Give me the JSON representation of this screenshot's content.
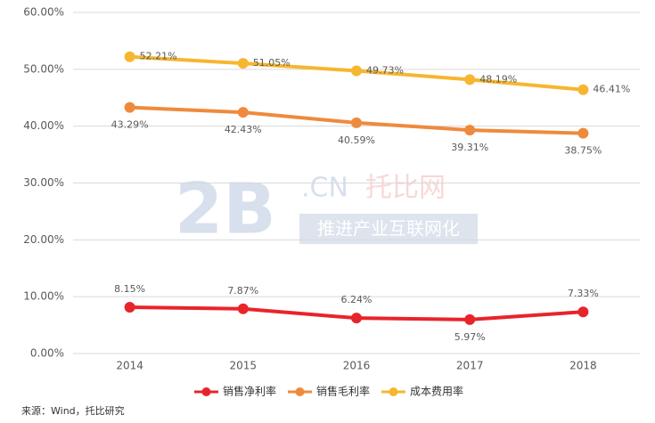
{
  "chart_data": {
    "type": "line",
    "categories": [
      "2014",
      "2015",
      "2016",
      "2017",
      "2018"
    ],
    "series": [
      {
        "name": "销售净利率",
        "color": "#e8242b",
        "values": [
          8.15,
          7.87,
          6.24,
          5.97,
          7.33
        ],
        "value_labels": [
          "8.15%",
          "7.87%",
          "6.24%",
          "5.97%",
          "7.33%"
        ]
      },
      {
        "name": "销售毛利率",
        "color": "#ef8a3c",
        "values": [
          43.29,
          42.43,
          40.59,
          39.31,
          38.75
        ],
        "value_labels": [
          "43.29%",
          "42.43%",
          "40.59%",
          "39.31%",
          "38.75%"
        ]
      },
      {
        "name": "成本费用率",
        "color": "#f6b630",
        "values": [
          52.21,
          51.05,
          49.73,
          48.19,
          46.41
        ],
        "value_labels": [
          "52.21%",
          "51.05%",
          "49.73%",
          "48.19%",
          "46.41%"
        ]
      }
    ],
    "ylim": [
      0,
      60
    ],
    "yticks": [
      {
        "value": 0,
        "label": "0.00%"
      },
      {
        "value": 10,
        "label": "10.00%"
      },
      {
        "value": 20,
        "label": "20.00%"
      },
      {
        "value": 30,
        "label": "30.00%"
      },
      {
        "value": 40,
        "label": "40.00%"
      },
      {
        "value": 50,
        "label": "50.00%"
      },
      {
        "value": 60,
        "label": "60.00%"
      }
    ],
    "grid": true,
    "legend": "bottom",
    "source": "来源：Wind，托比研究",
    "watermark": {
      "logo": "2B",
      "domain": ".CN",
      "name": "托比网",
      "slogan": "推进产业互联网化"
    }
  }
}
